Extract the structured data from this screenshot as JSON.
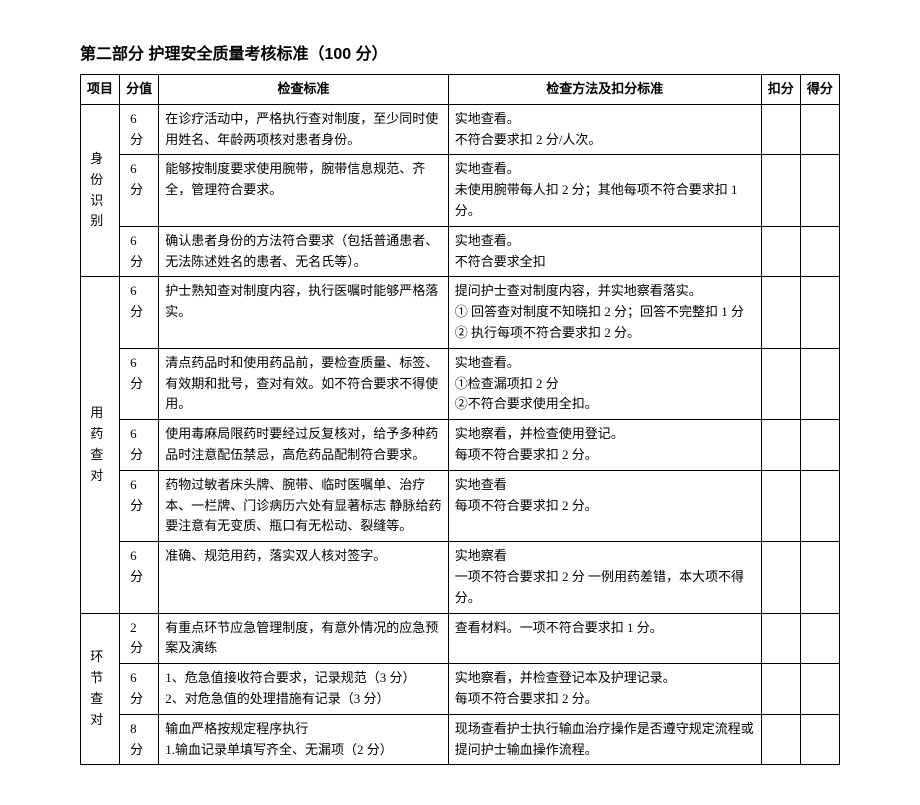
{
  "title": "第二部分 护理安全质量考核标准（100 分）",
  "headers": {
    "project": "项目",
    "score": "分值",
    "standard": "检查标准",
    "method": "检查方法及扣分标准",
    "deduct": "扣分",
    "got": "得分"
  },
  "sections": [
    {
      "name": "身 份\n识 别",
      "rows": [
        {
          "score": "6 分",
          "standard": "在诊疗活动中，严格执行查对制度，至少同时使用姓名、年龄两项核对患者身份。",
          "method": "实地查看。\n不符合要求扣 2 分/人次。"
        },
        {
          "score": "6 分",
          "standard": "能够按制度要求使用腕带，腕带信息规范、齐全，管理符合要求。",
          "method": "实地查看。\n未使用腕带每人扣 2 分；其他每项不符合要求扣 1 分。"
        },
        {
          "score": "6 分",
          "standard": "确认患者身份的方法符合要求（包括普通患者、无法陈述姓名的患者、无名氏等）。",
          "method": "实地查看。\n不符合要求全扣"
        }
      ]
    },
    {
      "name": "用 药\n查 对",
      "rows": [
        {
          "score": "6 分",
          "standard": "护士熟知查对制度内容，执行医嘱时能够严格落实。",
          "method": "提问护士查对制度内容，并实地察看落实。\n① 回答查对制度不知晓扣 2 分；回答不完整扣 1 分\n② 执行每项不符合要求扣 2 分。"
        },
        {
          "score": "6 分",
          "standard": "清点药品时和使用药品前，要检查质量、标签、有效期和批号，查对有效。如不符合要求不得使用。",
          "method": "实地查看。\n①检查漏项扣 2 分\n②不符合要求使用全扣。"
        },
        {
          "score": "6 分",
          "standard": "使用毒麻局限药时要经过反复核对，给予多种药品时注意配伍禁忌，高危药品配制符合要求。",
          "method": "实地察看，并检查使用登记。\n每项不符合要求扣 2 分。"
        },
        {
          "score": "6 分",
          "standard": "药物过敏者床头牌、腕带、临时医嘱单、治疗本、一栏牌、门诊病历六处有显著标志 静脉给药要注意有无变质、瓶口有无松动、裂缝等。",
          "method": "实地查看\n每项不符合要求扣 2 分。"
        },
        {
          "score": "6 分",
          "standard": "准确、规范用药，落实双人核对签字。",
          "method": "实地察看\n一项不符合要求扣 2 分 一例用药差错，本大项不得分。"
        }
      ]
    },
    {
      "name": "环 节\n查 对",
      "rows": [
        {
          "score": "2 分",
          "standard": "有重点环节应急管理制度，有意外情况的应急预案及演练",
          "method": "查看材料。一项不符合要求扣 1 分。"
        },
        {
          "score": "6 分",
          "standard": "1、危急值接收符合要求，记录规范（3 分）\n2、对危急值的处理措施有记录（3 分）",
          "method": "实地察看，并检查登记本及护理记录。\n每项不符合要求扣 2 分。"
        },
        {
          "score": "8 分",
          "standard": "输血严格按规定程序执行\n1.输血记录单填写齐全、无漏项（2 分）",
          "method": "现场查看护士执行输血治疗操作是否遵守规定流程或提问护士输血操作流程。"
        }
      ]
    }
  ]
}
